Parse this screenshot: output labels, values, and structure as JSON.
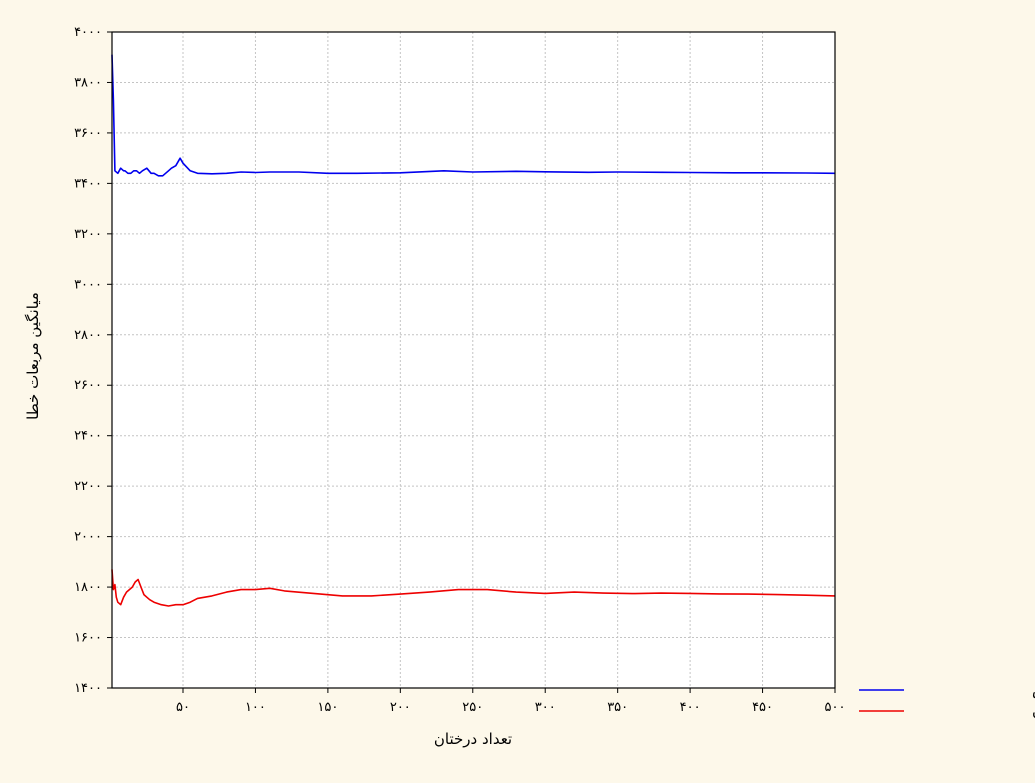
{
  "chart_data": {
    "type": "line",
    "title": "",
    "xlabel": "تعداد درختان",
    "ylabel": "میانگین مربعات خطا",
    "xlim": [
      1,
      500
    ],
    "ylim": [
      1400,
      4000
    ],
    "x_ticks": [
      50,
      100,
      150,
      200,
      250,
      300,
      350,
      400,
      450,
      500
    ],
    "x_tick_labels": [
      "۵۰",
      "۱۰۰",
      "۱۵۰",
      "۲۰۰",
      "۲۵۰",
      "۳۰۰",
      "۳۵۰",
      "۴۰۰",
      "۴۵۰",
      "۵۰۰"
    ],
    "y_ticks": [
      1400,
      1600,
      1800,
      2000,
      2200,
      2400,
      2600,
      2800,
      3000,
      3200,
      3400,
      3600,
      3800,
      4000
    ],
    "y_tick_labels": [
      "۱۴۰۰",
      "۱۶۰۰",
      "۱۸۰۰",
      "۲۰۰۰",
      "۲۲۰۰",
      "۲۴۰۰",
      "۲۶۰۰",
      "۲۸۰۰",
      "۳۰۰۰",
      "۳۲۰۰",
      "۳۴۰۰",
      "۳۶۰۰",
      "۳۸۰۰",
      "۴۰۰۰"
    ],
    "grid": true,
    "legend_position": "bottom-right",
    "series": [
      {
        "name": "داده های آموزش",
        "color": "#0000ee",
        "x": [
          1,
          2,
          3,
          5,
          7,
          9,
          10,
          12,
          14,
          16,
          18,
          20,
          22,
          25,
          28,
          30,
          33,
          36,
          38,
          40,
          42,
          45,
          48,
          50,
          55,
          60,
          70,
          80,
          90,
          100,
          110,
          120,
          130,
          150,
          170,
          200,
          230,
          250,
          280,
          300,
          330,
          350,
          380,
          400,
          430,
          450,
          480,
          500
        ],
        "y": [
          3910,
          3730,
          3450,
          3440,
          3460,
          3450,
          3450,
          3440,
          3440,
          3450,
          3450,
          3440,
          3450,
          3460,
          3440,
          3440,
          3430,
          3430,
          3440,
          3450,
          3460,
          3470,
          3500,
          3480,
          3450,
          3440,
          3438,
          3440,
          3445,
          3443,
          3445,
          3445,
          3445,
          3440,
          3440,
          3442,
          3450,
          3445,
          3448,
          3446,
          3444,
          3445,
          3444,
          3443,
          3442,
          3442,
          3441,
          3440
        ]
      },
      {
        "name": "داده های آزمون",
        "color": "#ee0000",
        "x": [
          1,
          2,
          3,
          4,
          5,
          7,
          9,
          11,
          13,
          15,
          17,
          19,
          21,
          23,
          25,
          27,
          30,
          35,
          40,
          45,
          50,
          55,
          60,
          70,
          80,
          90,
          100,
          110,
          120,
          140,
          160,
          180,
          200,
          220,
          240,
          260,
          280,
          300,
          320,
          340,
          360,
          380,
          400,
          420,
          440,
          460,
          480,
          500
        ],
        "y": [
          1870,
          1790,
          1810,
          1760,
          1740,
          1730,
          1760,
          1780,
          1790,
          1800,
          1820,
          1830,
          1800,
          1770,
          1760,
          1750,
          1740,
          1730,
          1725,
          1730,
          1730,
          1740,
          1755,
          1765,
          1780,
          1790,
          1790,
          1795,
          1785,
          1775,
          1765,
          1765,
          1772,
          1780,
          1790,
          1790,
          1780,
          1775,
          1780,
          1776,
          1774,
          1776,
          1775,
          1773,
          1772,
          1770,
          1768,
          1765
        ]
      }
    ]
  }
}
